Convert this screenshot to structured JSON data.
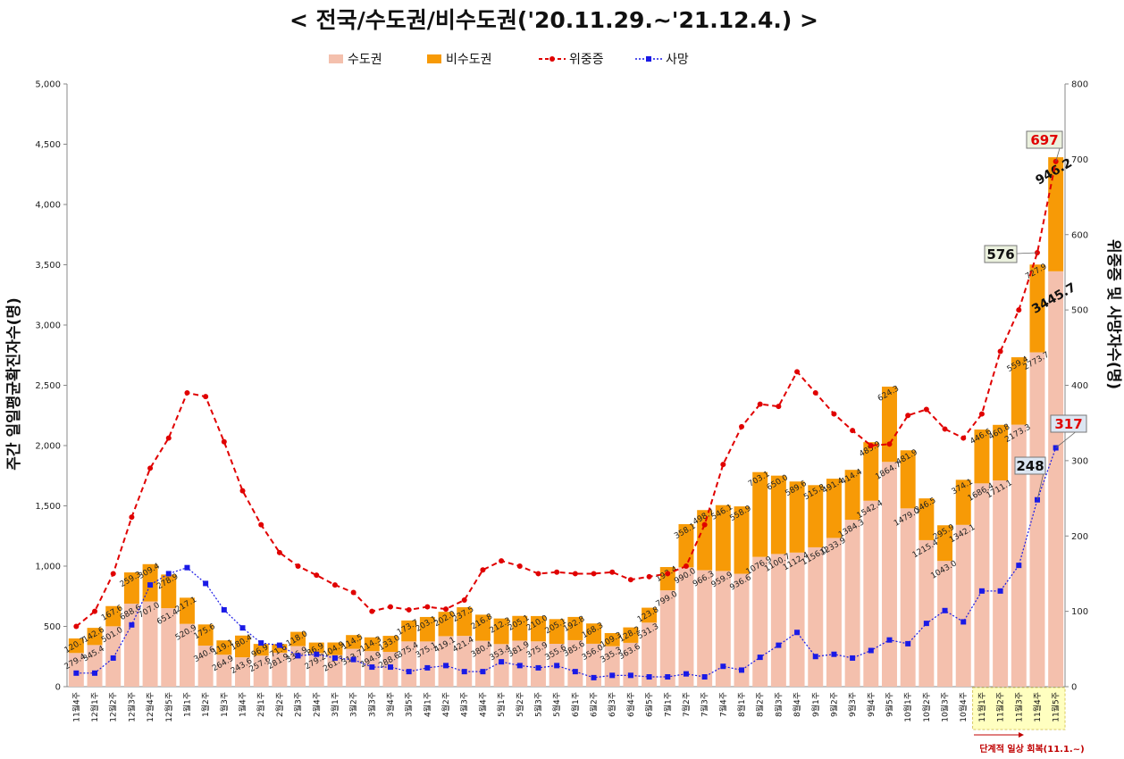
{
  "chart_data": {
    "type": "bar",
    "title": "< 전국/수도권/비수도권('20.11.29.~'21.12.4.) >",
    "ylabel_left": "주간 일일평균확진자수(명)",
    "ylabel_right": "위중증 및 사망자수(명)",
    "ylim_left": [
      0,
      5000
    ],
    "ylim_right": [
      0,
      800
    ],
    "yticks_left": [
      "0",
      "500",
      "1,000",
      "1,500",
      "2,000",
      "2,500",
      "3,000",
      "3,500",
      "4,000",
      "4,500",
      "5,000"
    ],
    "yticks_right": [
      "0",
      "100",
      "200",
      "300",
      "400",
      "500",
      "600",
      "700",
      "800"
    ],
    "legend": {
      "capital": "수도권",
      "noncapital": "비수도권",
      "critical": "위중증",
      "deaths": "사망"
    },
    "colors": {
      "capital": "#f4c0ad",
      "noncapital": "#f79a06",
      "critical": "#e00000",
      "deaths": "#1a1ae6",
      "highlight": "#ffffc0",
      "callout_box": "#ebf1de",
      "callout_box_blue": "#dce6f2"
    },
    "categories": [
      "11월4주",
      "12월1주",
      "12월2주",
      "12월3주",
      "12월4주",
      "12월5주",
      "1월1주",
      "1월2주",
      "1월3주",
      "1월4주",
      "2월1주",
      "2월2주",
      "2월3주",
      "2월4주",
      "3월1주",
      "3월2주",
      "3월3주",
      "3월4주",
      "3월5주",
      "4월1주",
      "4월2주",
      "4월3주",
      "4월4주",
      "5월1주",
      "5월2주",
      "5월3주",
      "5월4주",
      "6월1주",
      "6월2주",
      "6월3주",
      "6월4주",
      "6월5주",
      "7월1주",
      "7월2주",
      "7월3주",
      "7월4주",
      "8월1주",
      "8월2주",
      "8월3주",
      "8월4주",
      "9월1주",
      "9월2주",
      "9월3주",
      "9월4주",
      "9월5주",
      "10월1주",
      "10월2주",
      "10월3주",
      "10월4주",
      "11월1주",
      "11월2주",
      "11월3주",
      "11월4주",
      "11월5주"
    ],
    "highlight_range": [
      49,
      53
    ],
    "highlight_note": "단계적 일상 회복(11.1.~)",
    "series": [
      {
        "name": "수도권",
        "axis": "left",
        "values": [
          279.4,
          345.4,
          501.0,
          688.6,
          707.0,
          651.4,
          520.9,
          340.6,
          264.9,
          243.6,
          257.6,
          281.9,
          336.9,
          279.2,
          261.7,
          313.7,
          294.9,
          288.6,
          375.4,
          375.1,
          419.1,
          421.4,
          380.4,
          353.4,
          381.9,
          375.9,
          355.6,
          385.6,
          356.0,
          335.3,
          363.6,
          531.3,
          799.0,
          990.0,
          966.3,
          959.9,
          936.6,
          1076.9,
          1100.7,
          1112.4,
          1156.0,
          1233.9,
          1384.3,
          1542.4,
          1864.7,
          1479.0,
          1215.4,
          1043.0,
          1342.1,
          1686.4,
          1711.1,
          2173.3,
          2773.7,
          3445.7
        ],
        "labels": [
          "279.4",
          "345.4",
          "501.0",
          "688.6",
          "707.0",
          "651.4",
          "520.9",
          "340.6",
          "264.9",
          "243.6",
          "257.6",
          "281.9",
          "336.9",
          "279.2",
          "261.7",
          "313.7",
          "294.9",
          "288.6",
          "375.4",
          "375.1",
          "419.1",
          "421.4",
          "380.4",
          "353.4",
          "381.9",
          "375.9",
          "355.6",
          "385.6",
          "356.0",
          "335.3",
          "363.6",
          "531.3",
          "799.0",
          "990.0",
          "966.3",
          "959.9",
          "936.6",
          "1076.9",
          "1100.7",
          "1112.4",
          "1156.0",
          "1233.9",
          "1384.3",
          "1542.4",
          "1864.7",
          "1479.0",
          "1215.4",
          "1043.0",
          "1342.1",
          "1686.4",
          "1711.1",
          "2173.3",
          "2773.7",
          "3445.7"
        ]
      },
      {
        "name": "비수도권",
        "axis": "left",
        "values": [
          120.7,
          142.6,
          167.6,
          259.3,
          309.4,
          278.9,
          217.1,
          175.6,
          119.1,
          180.4,
          96.9,
          71.6,
          118.0,
          86.9,
          104.9,
          114.5,
          114.3,
          133.0,
          173.7,
          203.1,
          202.0,
          237.5,
          216.8,
          212.3,
          205.1,
          210.0,
          205.1,
          192.8,
          168.3,
          109.3,
          128.2,
          123.8,
          193.4,
          358.1,
          498.7,
          546.1,
          558.9,
          703.1,
          650.0,
          589.6,
          515.8,
          491.4,
          414.4,
          485.9,
          624.3,
          481.9,
          346.5,
          295.9,
          374.1,
          446.6,
          460.8,
          559.4,
          727.9,
          946.2
        ],
        "labels": [
          "120.7",
          "142.6",
          "167.6",
          "259.3",
          "309.4",
          "278.9",
          "217.1",
          "175.6",
          "119.1",
          "180.4",
          "96.9",
          "71.6",
          "118.0",
          "86.9",
          "104.9",
          "114.5",
          "114.3",
          "133.0",
          "173.7",
          "203.1",
          "202.0",
          "237.5",
          "216.8",
          "212.3",
          "205.1",
          "210.0",
          "205.1",
          "192.8",
          "168.3",
          "109.3",
          "128.2",
          "123.8",
          "193.4",
          "358.1",
          "498.7",
          "546.1",
          "558.9",
          "703.1",
          "650.0",
          "589.6",
          "515.8",
          "491.4",
          "414.4",
          "485.9",
          "624.3",
          "481.9",
          "346.5",
          "295.9",
          "374.1",
          "446.6",
          "460.8",
          "559.4",
          "727.9",
          "946.2"
        ]
      },
      {
        "name": "위중증",
        "axis": "right",
        "values": [
          80,
          100,
          150,
          225,
          290,
          330,
          390,
          385,
          325,
          260,
          215,
          178,
          160,
          148,
          135,
          125,
          100,
          106,
          102,
          106,
          103,
          115,
          155,
          167,
          160,
          150,
          152,
          150,
          150,
          152,
          142,
          146,
          150,
          160,
          215,
          295,
          345,
          375,
          372,
          418,
          390,
          362,
          340,
          320,
          322,
          360,
          368,
          342,
          330,
          362,
          445,
          500,
          576,
          697
        ],
        "callouts": {
          "52": "576",
          "53": "697"
        }
      },
      {
        "name": "사망",
        "axis": "right",
        "values": [
          18,
          18,
          38,
          82,
          135,
          150,
          158,
          137,
          102,
          78,
          58,
          55,
          41,
          43,
          38,
          36,
          26,
          26,
          20,
          25,
          28,
          20,
          20,
          33,
          28,
          25,
          28,
          20,
          12,
          15,
          15,
          13,
          13,
          17,
          13,
          27,
          22,
          39,
          55,
          72,
          40,
          43,
          38,
          48,
          62,
          57,
          84,
          101,
          86,
          127,
          127,
          161,
          248,
          317
        ],
        "callouts": {
          "52": "248",
          "53": "317"
        }
      }
    ]
  }
}
